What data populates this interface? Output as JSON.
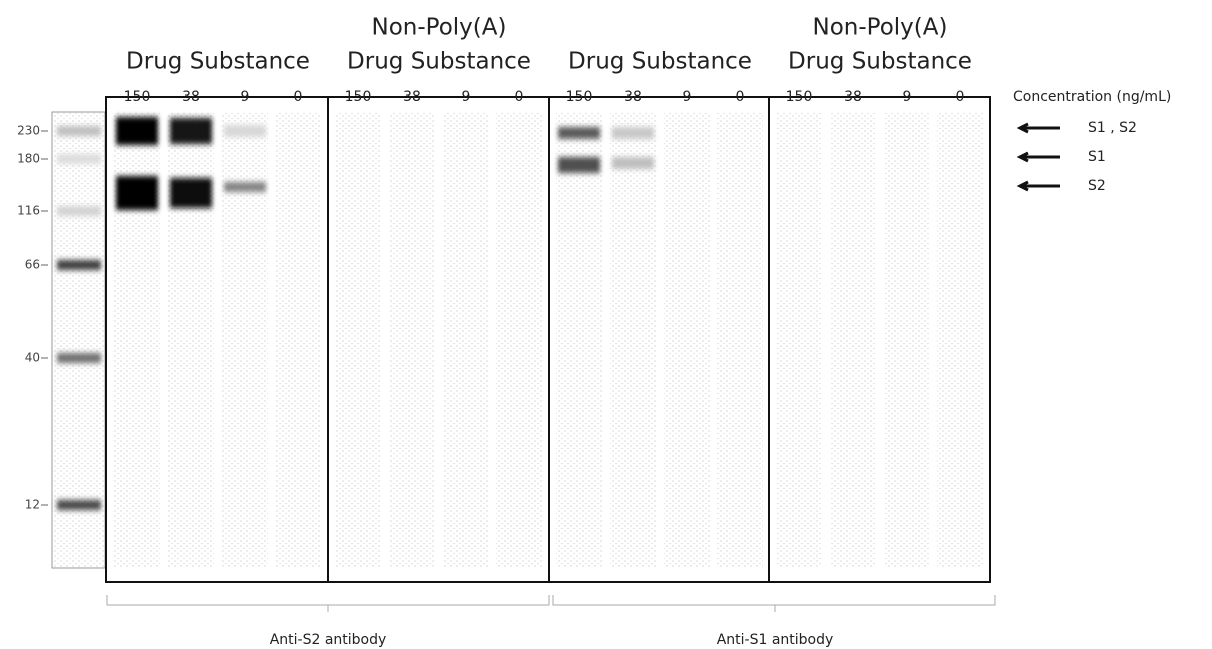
{
  "groups": [
    {
      "lines": [
        "Drug Substance"
      ],
      "lanes": [
        "150",
        "38",
        "9",
        "0"
      ]
    },
    {
      "lines": [
        "Non-Poly(A)",
        "Drug Substance"
      ],
      "lanes": [
        "150",
        "38",
        "9",
        "0"
      ]
    },
    {
      "lines": [
        "Drug Substance"
      ],
      "lanes": [
        "150",
        "38",
        "9",
        "0"
      ]
    },
    {
      "lines": [
        "Non-Poly(A)",
        "Drug Substance"
      ],
      "lanes": [
        "150",
        "38",
        "9",
        "0"
      ]
    }
  ],
  "concentration_label": "Concentration (ng/mL)",
  "ladder": [
    "230",
    "180",
    "116",
    "66",
    "40",
    "12"
  ],
  "annotations": [
    {
      "label": "S1 , S2"
    },
    {
      "label": "S1"
    },
    {
      "label": "S2"
    }
  ],
  "antibodies": [
    "Anti-S2  antibody",
    "Anti-S1  antibody"
  ]
}
